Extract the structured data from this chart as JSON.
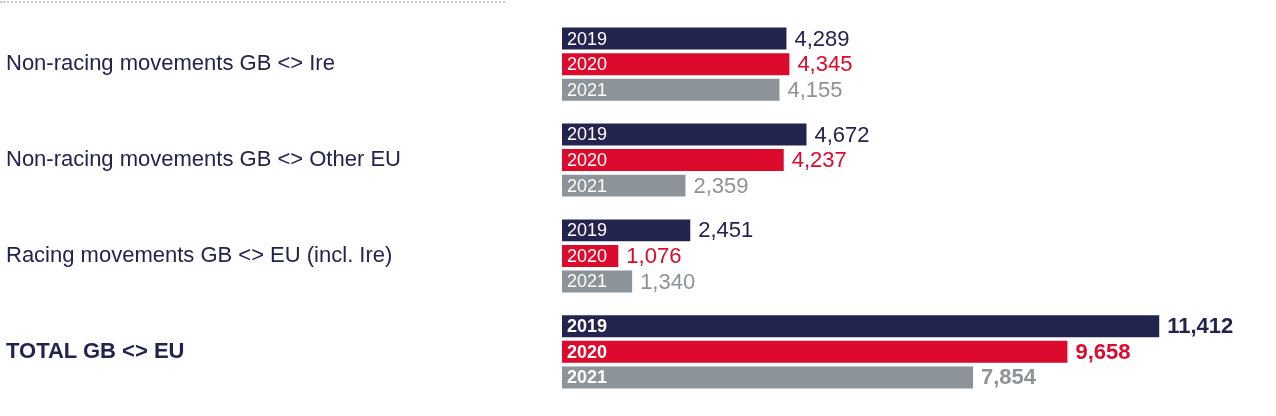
{
  "chart_data": {
    "type": "bar",
    "orientation": "horizontal",
    "categories": [
      "Non-racing movements GB <> Ire",
      "Non-racing movements GB <> Other EU",
      "Racing movements GB <> EU (incl. Ire)",
      "TOTAL GB <> EU"
    ],
    "series": [
      {
        "name": "2019",
        "color": "#23234f",
        "values": [
          4289,
          4672,
          2451,
          11412
        ],
        "value_labels": [
          "4,289",
          "4,672",
          "2,451",
          "11,412"
        ]
      },
      {
        "name": "2020",
        "color": "#dc0a2d",
        "values": [
          4345,
          4237,
          1076,
          9658
        ],
        "value_labels": [
          "4,345",
          "4,237",
          "1,076",
          "9,658"
        ]
      },
      {
        "name": "2021",
        "color": "#8c9399",
        "values": [
          4155,
          2359,
          1340,
          7854
        ],
        "value_labels": [
          "4,155",
          "2,359",
          "1,340",
          "7,854"
        ]
      }
    ],
    "legend": false
  }
}
